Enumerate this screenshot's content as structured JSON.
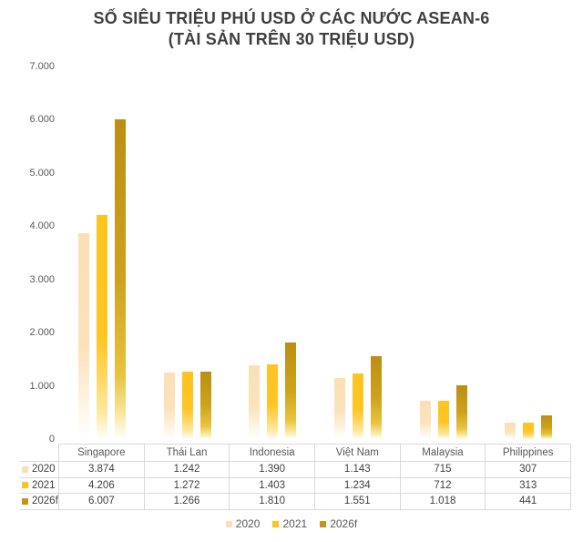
{
  "title_line1": "SỐ SIÊU TRIỆU PHÚ USD Ở CÁC NƯỚC ASEAN-6",
  "title_line2": "(TÀI SẢN TRÊN 30 TRIỆU USD)",
  "colors": {
    "series_2020": "#FAE0B5",
    "series_2021": "#FFC41E",
    "series_2026f": "#C2951B",
    "table_border": "#D9D9D9",
    "title_text": "#3F3F3F",
    "axis_text": "#595959"
  },
  "chart_data": {
    "type": "bar",
    "title": "SỐ SIÊU TRIỆU PHÚ USD Ở CÁC NƯỚC ASEAN-6 (TÀI SẢN TRÊN 30 TRIỆU USD)",
    "categories": [
      "Singapore",
      "Thái Lan",
      "Indonesia",
      "Việt Nam",
      "Malaysia",
      "Philippines"
    ],
    "series": [
      {
        "name": "2020",
        "values": [
          3874,
          1242,
          1390,
          1143,
          715,
          307
        ]
      },
      {
        "name": "2021",
        "values": [
          4206,
          1272,
          1403,
          1234,
          712,
          313
        ]
      },
      {
        "name": "2026f",
        "values": [
          6007,
          1266,
          1810,
          1551,
          1018,
          441
        ]
      }
    ],
    "ylim": [
      0,
      7000
    ],
    "y_tick_labels": [
      "7.000",
      "6.000",
      "5.000",
      "4.000",
      "3.000",
      "2.000",
      "1.000",
      "0"
    ],
    "grid": false,
    "legend_position": "bottom",
    "data_table_shown": true
  },
  "legend": {
    "items": [
      {
        "label": "2020"
      },
      {
        "label": "2021"
      },
      {
        "label": "2026f"
      }
    ]
  }
}
